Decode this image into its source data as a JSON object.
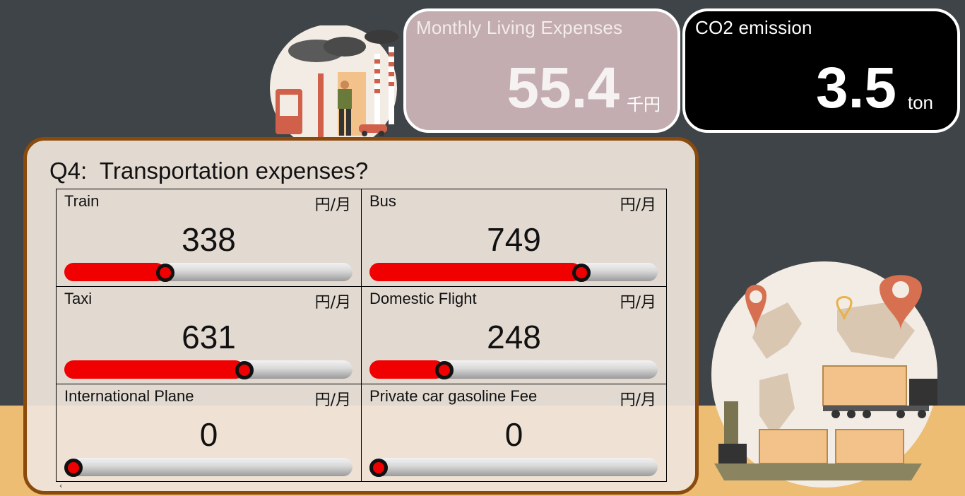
{
  "header": {
    "expenses_card": {
      "title": "Monthly Living Expenses",
      "value": "55.4",
      "unit": "千円"
    },
    "co2_card": {
      "title": "CO2 emission",
      "value": "3.5",
      "unit": "ton"
    }
  },
  "question": {
    "title": "Q4:  Transportation expenses?",
    "items": [
      {
        "label": "Train",
        "unit": "円/月",
        "value": "338",
        "level": 0.35
      },
      {
        "label": "Bus",
        "unit": "円/月",
        "value": "749",
        "level": 0.735
      },
      {
        "label": "Taxi",
        "unit": "円/月",
        "value": "631",
        "level": 0.625
      },
      {
        "label": "Domestic Flight",
        "unit": "円/月",
        "value": "248",
        "level": 0.26
      },
      {
        "label": "International Plane",
        "unit": "円/月",
        "value": "0",
        "level": 0.0
      },
      {
        "label": "Private car gasoline Fee",
        "unit": "円/月",
        "value": "0",
        "level": 0.0
      }
    ]
  },
  "colors": {
    "background": "#3f4448",
    "ground": "#ecbd73",
    "panel_border": "#8a4a0c",
    "slider_fill": "#f00000",
    "expenses_card": "#c3adb0",
    "co2_card": "#000000"
  },
  "icons": {
    "factory_illustration": "factory-illustration",
    "world_illustration": "world-logistics-illustration"
  }
}
